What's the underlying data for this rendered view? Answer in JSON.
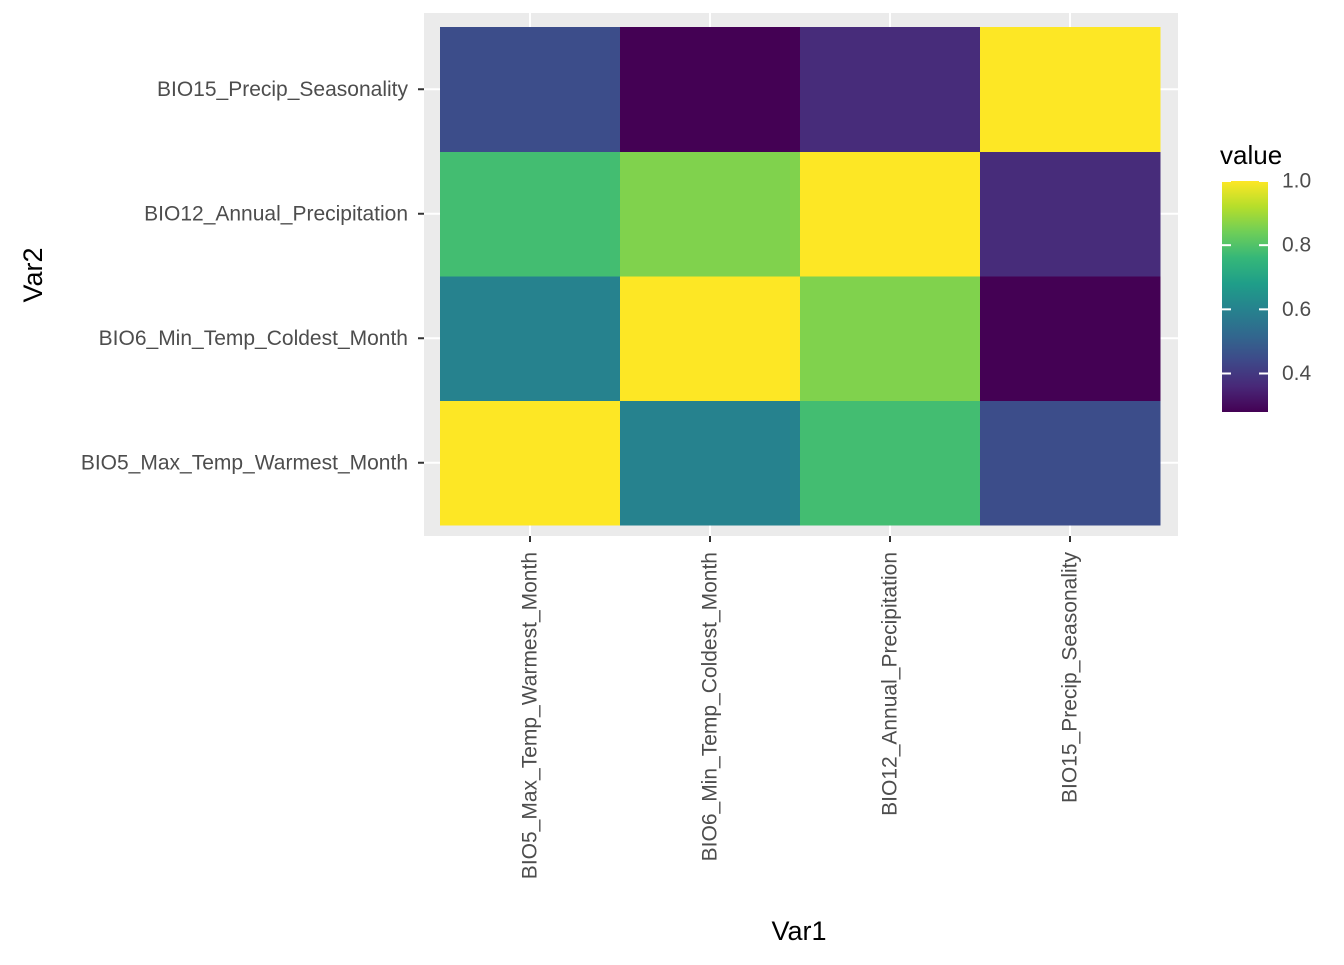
{
  "chart_data": {
    "type": "heatmap",
    "title": "",
    "xlabel": "Var1",
    "ylabel": "Var2",
    "x_categories": [
      "BIO5_Max_Temp_Warmest_Month",
      "BIO6_Min_Temp_Coldest_Month",
      "BIO12_Annual_Precipitation",
      "BIO15_Precip_Seasonality"
    ],
    "y_categories": [
      "BIO5_Max_Temp_Warmest_Month",
      "BIO6_Min_Temp_Coldest_Month",
      "BIO12_Annual_Precipitation",
      "BIO15_Precip_Seasonality"
    ],
    "values": [
      [
        1.0,
        0.6,
        0.78,
        0.45
      ],
      [
        0.6,
        1.0,
        0.86,
        0.28
      ],
      [
        0.78,
        0.86,
        1.0,
        0.37
      ],
      [
        0.45,
        0.28,
        0.37,
        1.0
      ]
    ],
    "color_scale": {
      "name": "viridis",
      "domain": [
        0.28,
        1.0
      ],
      "stops": [
        "#440154",
        "#482878",
        "#3e4989",
        "#31688e",
        "#26828e",
        "#1f9e89",
        "#35b779",
        "#6ece58",
        "#b5de2b",
        "#fde725"
      ]
    },
    "legend": {
      "title": "value",
      "position": "right",
      "ticks": [
        "0.4",
        "0.6",
        "0.8",
        "1.0"
      ],
      "tick_values": [
        0.4,
        0.6,
        0.8,
        1.0
      ]
    },
    "panel_background": "#ebebeb",
    "grid": true
  }
}
